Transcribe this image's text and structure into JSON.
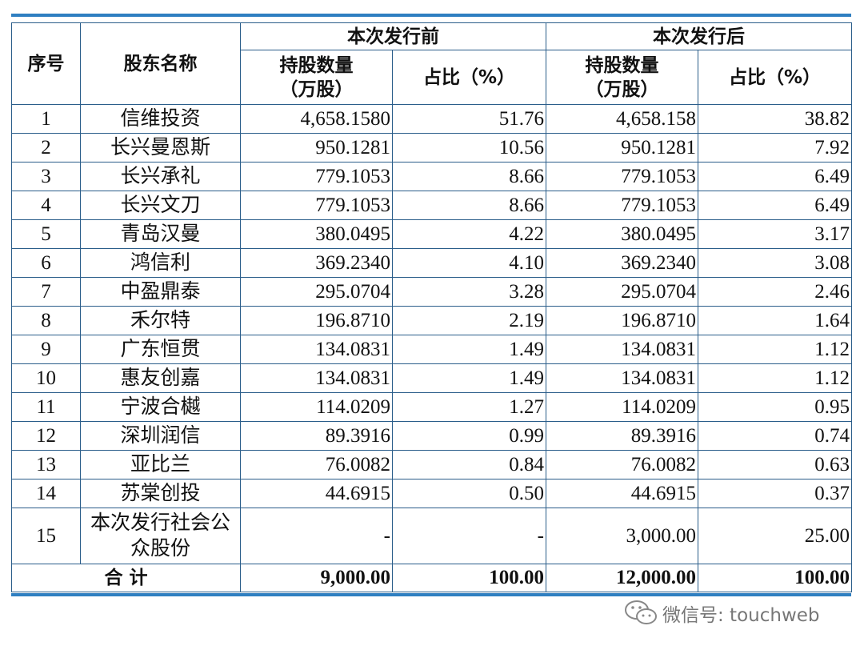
{
  "table": {
    "header": {
      "seq": "序号",
      "name": "股东名称",
      "groups": [
        "本次发行前",
        "本次发行后"
      ],
      "columns": [
        [
          "持股数量",
          "（万股）"
        ],
        [
          "占比（%）"
        ],
        [
          "持股数量",
          "（万股）"
        ],
        [
          "占比（%）"
        ]
      ]
    },
    "rows": [
      [
        "1",
        "信维投资",
        "4,658.1580",
        "51.76",
        "4,658.158",
        "38.82"
      ],
      [
        "2",
        "长兴曼恩斯",
        "950.1281",
        "10.56",
        "950.1281",
        "7.92"
      ],
      [
        "3",
        "长兴承礼",
        "779.1053",
        "8.66",
        "779.1053",
        "6.49"
      ],
      [
        "4",
        "长兴文刀",
        "779.1053",
        "8.66",
        "779.1053",
        "6.49"
      ],
      [
        "5",
        "青岛汉曼",
        "380.0495",
        "4.22",
        "380.0495",
        "3.17"
      ],
      [
        "6",
        "鸿信利",
        "369.2340",
        "4.10",
        "369.2340",
        "3.08"
      ],
      [
        "7",
        "中盈鼎泰",
        "295.0704",
        "3.28",
        "295.0704",
        "2.46"
      ],
      [
        "8",
        "禾尔特",
        "196.8710",
        "2.19",
        "196.8710",
        "1.64"
      ],
      [
        "9",
        "广东恒贯",
        "134.0831",
        "1.49",
        "134.0831",
        "1.12"
      ],
      [
        "10",
        "惠友创嘉",
        "134.0831",
        "1.49",
        "134.0831",
        "1.12"
      ],
      [
        "11",
        "宁波合樾",
        "114.0209",
        "1.27",
        "114.0209",
        "0.95"
      ],
      [
        "12",
        "深圳润信",
        "89.3916",
        "0.99",
        "89.3916",
        "0.74"
      ],
      [
        "13",
        "亚比兰",
        "76.0082",
        "0.84",
        "76.0082",
        "0.63"
      ],
      [
        "14",
        "苏棠创投",
        "44.6915",
        "0.50",
        "44.6915",
        "0.37"
      ],
      [
        "15",
        "本次发行社会公众股份",
        "-",
        "-",
        "3,000.00",
        "25.00"
      ]
    ],
    "total": [
      "合 计",
      "9,000.00",
      "100.00",
      "12,000.00",
      "100.00"
    ]
  },
  "watermark": "微信号: touchweb"
}
